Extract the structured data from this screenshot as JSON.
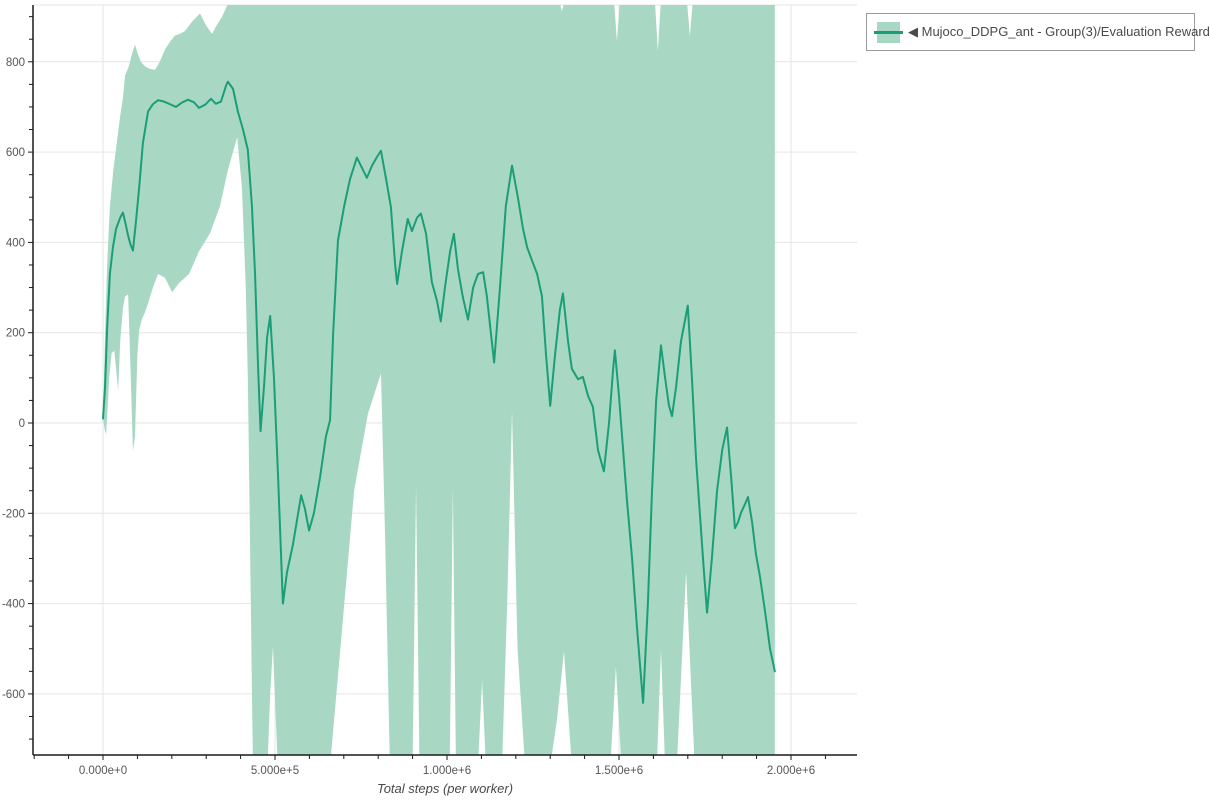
{
  "colors": {
    "line": "#1b9e77",
    "band": "#a8d8c4",
    "grid": "#e6e6e6",
    "axis": "#1a1a1a",
    "tick_label": "#555555",
    "background": "#ffffff"
  },
  "legend": {
    "label": "◀ Mujoco_DDPG_ant - Group(3)/Evaluation Reward"
  },
  "chart_data": {
    "type": "line",
    "title": "",
    "xlabel": "Total steps (per worker)",
    "ylabel": "",
    "grid": true,
    "legend_position": "top-right",
    "xlim": [
      -203000,
      2192000
    ],
    "ylim": [
      -736,
      927
    ],
    "x_tick_labels": [
      "0.000e+0",
      "5.000e+5",
      "1.000e+6",
      "1.500e+6",
      "2.000e+6"
    ],
    "x_tick_values": [
      0,
      500000,
      1000000,
      1500000,
      2000000
    ],
    "x_minor_step": 100000,
    "y_tick_values": [
      800,
      600,
      400,
      200,
      0,
      -200,
      -400,
      -600
    ],
    "y_minor_step": 50,
    "steps_unit": 1000,
    "series": [
      {
        "name": "Mujoco_DDPG_ant - Group(3)/Evaluation Reward",
        "aggregation": "group mean with min-max band (3 runs)",
        "mean": [
          [
            0,
            10
          ],
          [
            6,
            80
          ],
          [
            12,
            210
          ],
          [
            20,
            330
          ],
          [
            29,
            390
          ],
          [
            38,
            430
          ],
          [
            50,
            455
          ],
          [
            58,
            466
          ],
          [
            66,
            440
          ],
          [
            73,
            415
          ],
          [
            80,
            395
          ],
          [
            87,
            382
          ],
          [
            95,
            440
          ],
          [
            105,
            520
          ],
          [
            116,
            620
          ],
          [
            131,
            690
          ],
          [
            145,
            706
          ],
          [
            160,
            715
          ],
          [
            177,
            712
          ],
          [
            195,
            706
          ],
          [
            212,
            700
          ],
          [
            230,
            710
          ],
          [
            247,
            716
          ],
          [
            265,
            710
          ],
          [
            279,
            698
          ],
          [
            297,
            705
          ],
          [
            314,
            718
          ],
          [
            328,
            707
          ],
          [
            343,
            712
          ],
          [
            358,
            748
          ],
          [
            363,
            756
          ],
          [
            378,
            740
          ],
          [
            392,
            690
          ],
          [
            407,
            650
          ],
          [
            421,
            605
          ],
          [
            433,
            480
          ],
          [
            442,
            330
          ],
          [
            451,
            120
          ],
          [
            458,
            -18
          ],
          [
            468,
            80
          ],
          [
            477,
            190
          ],
          [
            486,
            237
          ],
          [
            497,
            100
          ],
          [
            509,
            -120
          ],
          [
            523,
            -400
          ],
          [
            535,
            -330
          ],
          [
            552,
            -270
          ],
          [
            576,
            -160
          ],
          [
            587,
            -190
          ],
          [
            599,
            -238
          ],
          [
            613,
            -200
          ],
          [
            631,
            -120
          ],
          [
            648,
            -30
          ],
          [
            660,
            6
          ],
          [
            669,
            198
          ],
          [
            683,
            404
          ],
          [
            701,
            480
          ],
          [
            718,
            540
          ],
          [
            738,
            588
          ],
          [
            753,
            565
          ],
          [
            767,
            543
          ],
          [
            782,
            570
          ],
          [
            797,
            590
          ],
          [
            808,
            603
          ],
          [
            823,
            540
          ],
          [
            837,
            478
          ],
          [
            849,
            353
          ],
          [
            855,
            308
          ],
          [
            869,
            380
          ],
          [
            886,
            452
          ],
          [
            898,
            425
          ],
          [
            913,
            455
          ],
          [
            924,
            464
          ],
          [
            939,
            420
          ],
          [
            956,
            312
          ],
          [
            971,
            270
          ],
          [
            982,
            225
          ],
          [
            994,
            300
          ],
          [
            1009,
            380
          ],
          [
            1020,
            419
          ],
          [
            1032,
            340
          ],
          [
            1046,
            279
          ],
          [
            1061,
            229
          ],
          [
            1076,
            300
          ],
          [
            1090,
            330
          ],
          [
            1105,
            334
          ],
          [
            1116,
            280
          ],
          [
            1137,
            134
          ],
          [
            1154,
            300
          ],
          [
            1171,
            480
          ],
          [
            1189,
            570
          ],
          [
            1206,
            500
          ],
          [
            1221,
            430
          ],
          [
            1233,
            389
          ],
          [
            1247,
            360
          ],
          [
            1262,
            330
          ],
          [
            1276,
            281
          ],
          [
            1288,
            150
          ],
          [
            1300,
            38
          ],
          [
            1314,
            150
          ],
          [
            1328,
            250
          ],
          [
            1337,
            287
          ],
          [
            1352,
            180
          ],
          [
            1363,
            120
          ],
          [
            1381,
            97
          ],
          [
            1395,
            102
          ],
          [
            1410,
            60
          ],
          [
            1424,
            36
          ],
          [
            1439,
            -60
          ],
          [
            1456,
            -107
          ],
          [
            1471,
            0
          ],
          [
            1483,
            120
          ],
          [
            1488,
            161
          ],
          [
            1500,
            60
          ],
          [
            1512,
            -60
          ],
          [
            1523,
            -170
          ],
          [
            1538,
            -300
          ],
          [
            1552,
            -450
          ],
          [
            1570,
            -620
          ],
          [
            1584,
            -400
          ],
          [
            1596,
            -150
          ],
          [
            1608,
            50
          ],
          [
            1622,
            172
          ],
          [
            1634,
            100
          ],
          [
            1645,
            40
          ],
          [
            1654,
            15
          ],
          [
            1666,
            80
          ],
          [
            1680,
            180
          ],
          [
            1700,
            260
          ],
          [
            1712,
            100
          ],
          [
            1724,
            -80
          ],
          [
            1735,
            -200
          ],
          [
            1747,
            -330
          ],
          [
            1756,
            -420
          ],
          [
            1770,
            -300
          ],
          [
            1785,
            -150
          ],
          [
            1800,
            -60
          ],
          [
            1814,
            -10
          ],
          [
            1826,
            -120
          ],
          [
            1837,
            -233
          ],
          [
            1846,
            -220
          ],
          [
            1854,
            -200
          ],
          [
            1866,
            -180
          ],
          [
            1875,
            -164
          ],
          [
            1887,
            -220
          ],
          [
            1898,
            -290
          ],
          [
            1910,
            -341
          ],
          [
            1925,
            -420
          ],
          [
            1939,
            -500
          ],
          [
            1953,
            -550
          ]
        ],
        "band_upper": [
          [
            0,
            10
          ],
          [
            6,
            200
          ],
          [
            12,
            350
          ],
          [
            20,
            480
          ],
          [
            30,
            560
          ],
          [
            40,
            620
          ],
          [
            50,
            680
          ],
          [
            58,
            720
          ],
          [
            64,
            769
          ],
          [
            75,
            790
          ],
          [
            85,
            820
          ],
          [
            93,
            838
          ],
          [
            100,
            820
          ],
          [
            110,
            800
          ],
          [
            122,
            790
          ],
          [
            135,
            785
          ],
          [
            151,
            782
          ],
          [
            165,
            800
          ],
          [
            180,
            827
          ],
          [
            195,
            845
          ],
          [
            209,
            858
          ],
          [
            224,
            862
          ],
          [
            238,
            868
          ],
          [
            260,
            890
          ],
          [
            282,
            907
          ],
          [
            300,
            880
          ],
          [
            317,
            862
          ],
          [
            330,
            880
          ],
          [
            346,
            900
          ],
          [
            363,
            928
          ],
          [
            380,
            935
          ],
          [
            400,
            938
          ],
          [
            413,
            940
          ],
          [
            1325,
            940
          ],
          [
            1334,
            912
          ],
          [
            1343,
            940
          ],
          [
            1485,
            940
          ],
          [
            1494,
            846
          ],
          [
            1503,
            940
          ],
          [
            1604,
            940
          ],
          [
            1613,
            824
          ],
          [
            1622,
            940
          ],
          [
            1697,
            940
          ],
          [
            1706,
            857
          ],
          [
            1715,
            940
          ],
          [
            1953,
            940
          ]
        ],
        "band_lower": [
          [
            0,
            10
          ],
          [
            5,
            -15
          ],
          [
            9,
            -25
          ],
          [
            14,
            40
          ],
          [
            18,
            100
          ],
          [
            25,
            155
          ],
          [
            33,
            160
          ],
          [
            44,
            72
          ],
          [
            50,
            180
          ],
          [
            58,
            255
          ],
          [
            64,
            280
          ],
          [
            73,
            285
          ],
          [
            80,
            120
          ],
          [
            87,
            -62
          ],
          [
            93,
            -30
          ],
          [
            100,
            150
          ],
          [
            105,
            205
          ],
          [
            113,
            230
          ],
          [
            122,
            245
          ],
          [
            131,
            265
          ],
          [
            145,
            300
          ],
          [
            160,
            330
          ],
          [
            180,
            322
          ],
          [
            201,
            290
          ],
          [
            221,
            310
          ],
          [
            250,
            330
          ],
          [
            279,
            380
          ],
          [
            311,
            420
          ],
          [
            340,
            480
          ],
          [
            363,
            560
          ],
          [
            390,
            633
          ],
          [
            404,
            520
          ],
          [
            415,
            300
          ],
          [
            421,
            100
          ],
          [
            428,
            -300
          ],
          [
            433,
            -600
          ],
          [
            436,
            -760
          ],
          [
            478,
            -760
          ],
          [
            486,
            -600
          ],
          [
            494,
            -495
          ],
          [
            502,
            -650
          ],
          [
            508,
            -760
          ],
          [
            660,
            -760
          ],
          [
            690,
            -500
          ],
          [
            730,
            -150
          ],
          [
            770,
            20
          ],
          [
            808,
            110
          ],
          [
            820,
            -250
          ],
          [
            834,
            -760
          ],
          [
            900,
            -760
          ],
          [
            910,
            -141
          ],
          [
            920,
            -760
          ],
          [
            1008,
            -760
          ],
          [
            1017,
            -145
          ],
          [
            1026,
            -760
          ],
          [
            1090,
            -760
          ],
          [
            1102,
            -570
          ],
          [
            1113,
            -760
          ],
          [
            1160,
            -760
          ],
          [
            1175,
            -400
          ],
          [
            1189,
            26
          ],
          [
            1205,
            -500
          ],
          [
            1227,
            -760
          ],
          [
            1300,
            -760
          ],
          [
            1320,
            -655
          ],
          [
            1340,
            -505
          ],
          [
            1363,
            -760
          ],
          [
            1475,
            -760
          ],
          [
            1491,
            -540
          ],
          [
            1507,
            -760
          ],
          [
            1610,
            -760
          ],
          [
            1622,
            -502
          ],
          [
            1634,
            -760
          ],
          [
            1668,
            -760
          ],
          [
            1695,
            -330
          ],
          [
            1720,
            -760
          ],
          [
            1953,
            -760
          ]
        ]
      }
    ]
  }
}
